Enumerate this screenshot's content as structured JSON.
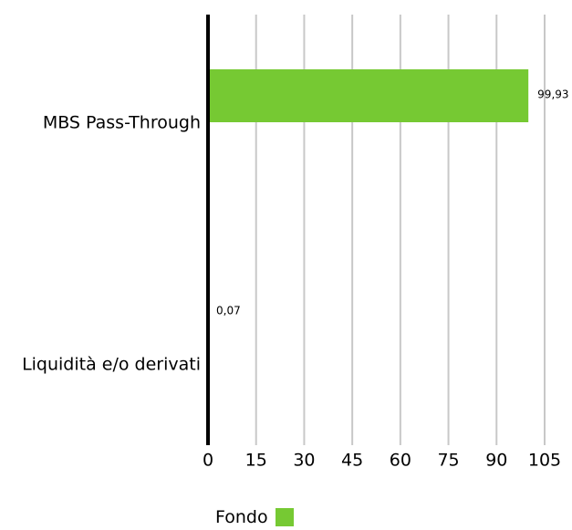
{
  "chart_data": {
    "type": "bar",
    "orientation": "horizontal",
    "categories": [
      "MBS Pass-Through",
      "Liquidità e/o derivati"
    ],
    "series": [
      {
        "name": "Fondo",
        "values": [
          99.93,
          0.07
        ],
        "value_labels": [
          "99,93",
          "0,07"
        ],
        "color": "#76c933"
      }
    ],
    "xlim": [
      0,
      105
    ],
    "xticks": [
      0,
      15,
      30,
      45,
      60,
      75,
      90,
      105
    ],
    "xtick_labels": [
      "0",
      "15",
      "30",
      "45",
      "60",
      "75",
      "90",
      "105"
    ],
    "grid": true,
    "grid_color": "#c8c8c8",
    "axis_color": "#000000",
    "legend_position": "bottom"
  }
}
